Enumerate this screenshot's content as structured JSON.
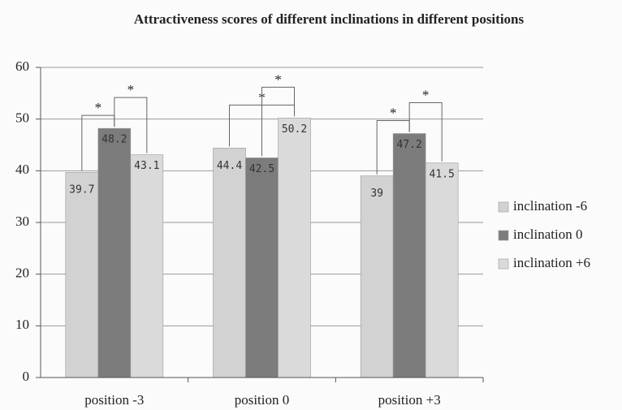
{
  "chart_data": {
    "type": "bar",
    "title": "Attractiveness scores of different inclinations in different positions",
    "categories": [
      "position -3",
      "position 0",
      "position +3"
    ],
    "series": [
      {
        "name": "inclination -6",
        "color": "#d2d2d2",
        "values": [
          39.7,
          44.4,
          39
        ]
      },
      {
        "name": "inclination 0",
        "color": "#7c7c7c",
        "values": [
          48.2,
          42.5,
          47.2
        ]
      },
      {
        "name": "inclination +6",
        "color": "#dadada",
        "values": [
          43.1,
          50.2,
          41.5
        ]
      }
    ],
    "ylim": [
      0,
      60
    ],
    "yticks": [
      0,
      10,
      20,
      30,
      40,
      50,
      60
    ],
    "grid": true,
    "legend": "right",
    "annotations": [
      {
        "label": "*",
        "group": 0,
        "between": [
          0,
          1
        ]
      },
      {
        "label": "*",
        "group": 0,
        "between": [
          1,
          2
        ]
      },
      {
        "label": "*",
        "group": 1,
        "between": [
          0,
          2
        ]
      },
      {
        "label": "*",
        "group": 1,
        "between": [
          1,
          2
        ]
      },
      {
        "label": "*",
        "group": 2,
        "between": [
          0,
          1
        ]
      },
      {
        "label": "*",
        "group": 2,
        "between": [
          1,
          2
        ]
      }
    ]
  }
}
